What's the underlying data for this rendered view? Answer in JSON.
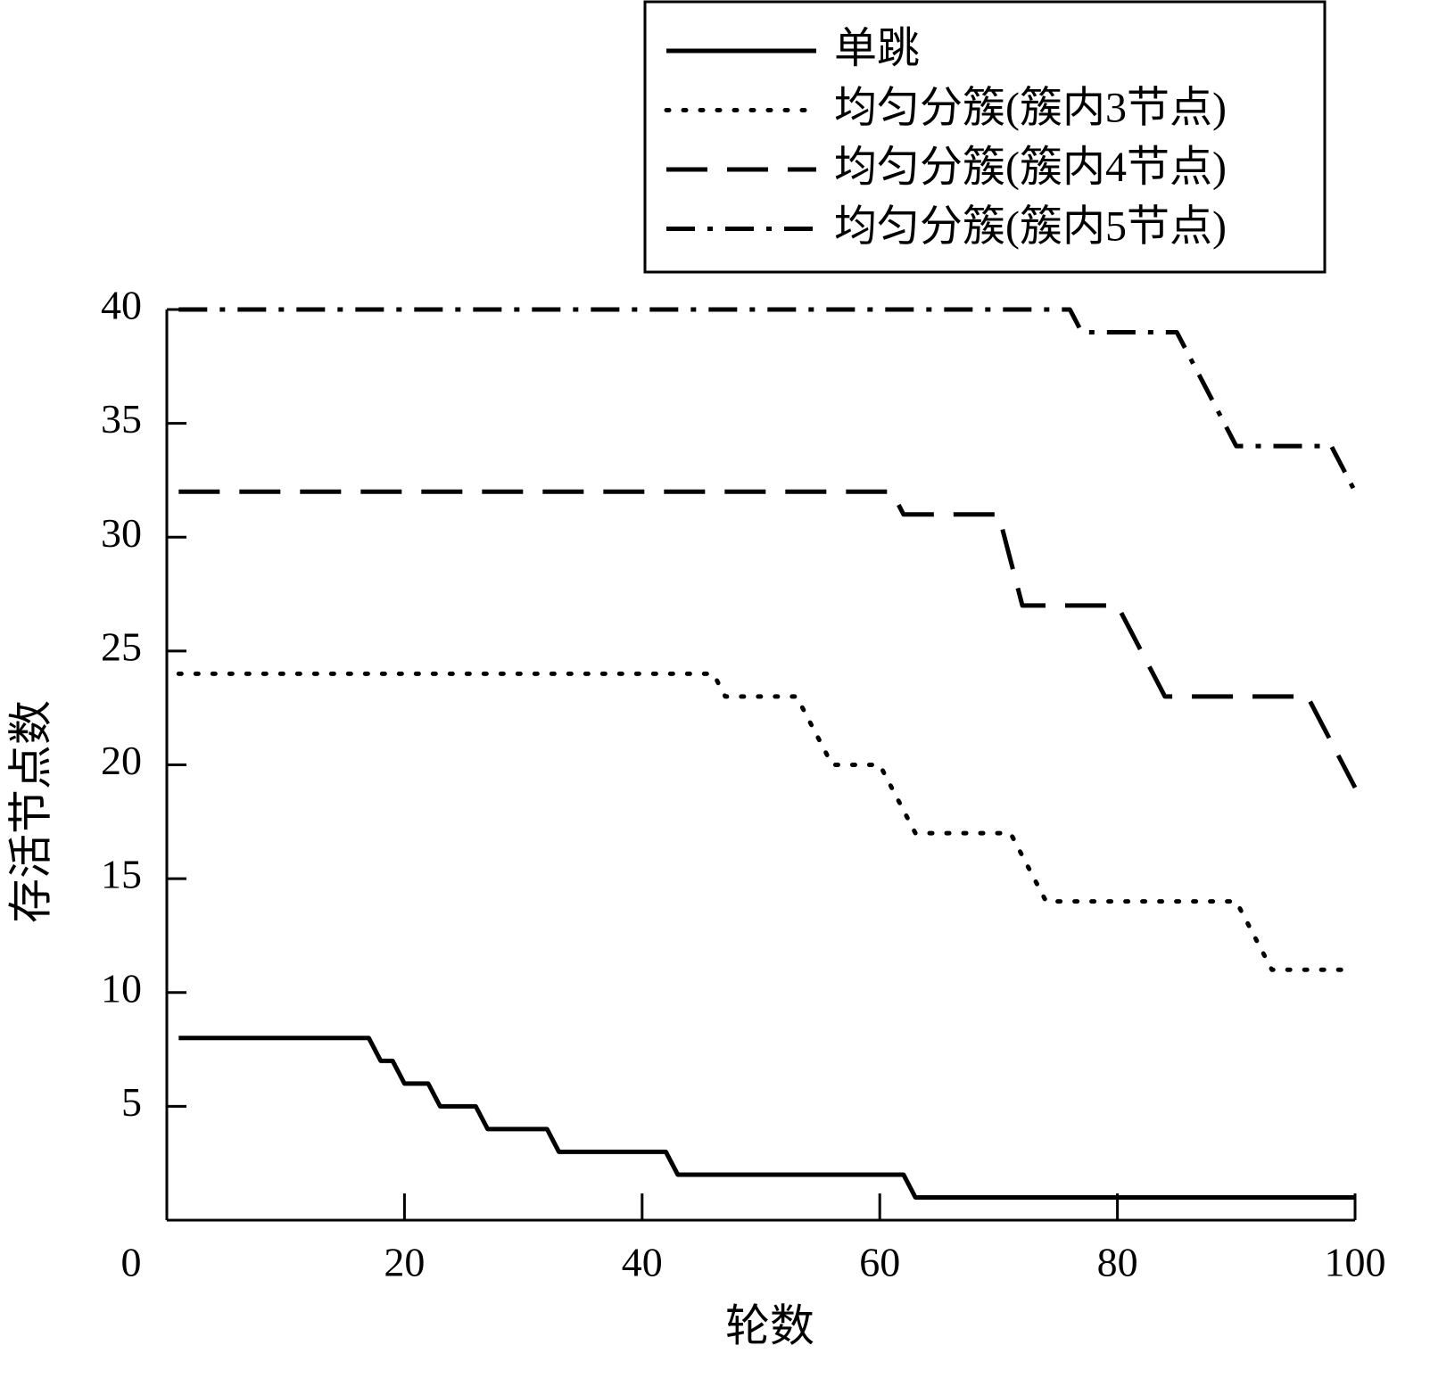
{
  "chart_data": {
    "type": "line",
    "x_label": "轮数",
    "y_label": "存活节点数",
    "xlim": [
      0,
      100
    ],
    "ylim": [
      0,
      40
    ],
    "xticks": [
      0,
      20,
      40,
      60,
      80,
      100
    ],
    "yticks": [
      5,
      10,
      15,
      20,
      25,
      30,
      35,
      40
    ],
    "legend": "top-right",
    "series": [
      {
        "name": "单跳",
        "color": "#000000",
        "style": "solid",
        "x": [
          1,
          17,
          18,
          19,
          20,
          22,
          23,
          26,
          27,
          32,
          33,
          42,
          43,
          62,
          63,
          100
        ],
        "values": [
          8,
          8,
          7,
          7,
          6,
          6,
          5,
          5,
          4,
          4,
          3,
          3,
          2,
          2,
          1,
          1
        ]
      },
      {
        "name": "均匀分簇(簇内3节点)",
        "color": "#000000",
        "style": "dotted",
        "x": [
          1,
          46,
          47,
          53,
          56,
          60,
          63,
          71,
          74,
          90,
          93,
          100
        ],
        "values": [
          24,
          24,
          23,
          23,
          20,
          20,
          17,
          17,
          14,
          14,
          11,
          11
        ]
      },
      {
        "name": "均匀分簇(簇内4节点)",
        "color": "#000000",
        "style": "dashed",
        "x": [
          1,
          61,
          62,
          70,
          72,
          80,
          84,
          96,
          100
        ],
        "values": [
          32,
          32,
          31,
          31,
          27,
          27,
          23,
          23,
          19
        ]
      },
      {
        "name": "均匀分簇(簇内5节点)",
        "color": "#000000",
        "style": "dashdot",
        "x": [
          1,
          76,
          77,
          85,
          90,
          98,
          100
        ],
        "values": [
          40,
          40,
          39,
          39,
          34,
          34,
          32
        ]
      }
    ]
  }
}
